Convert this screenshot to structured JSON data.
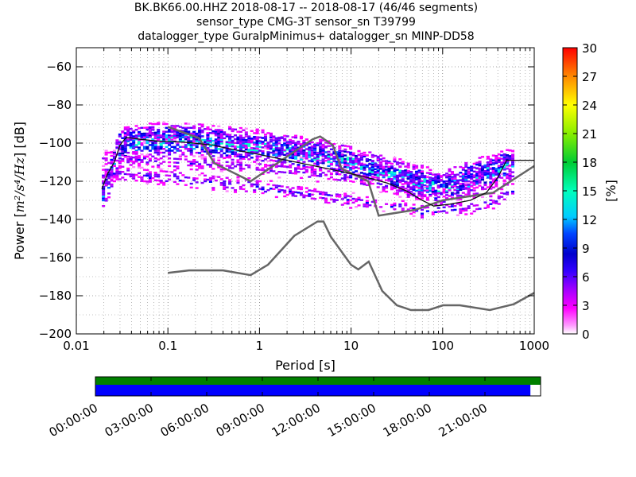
{
  "title_lines": [
    "BK.BK66.00.HHZ   2018-08-17 -- 2018-08-17  (46/46 segments)",
    "sensor_type CMG-3T sensor_sn T39799",
    "datalogger_type GuralpMinimus+ datalogger_sn MINP-DD58"
  ],
  "chart_data": {
    "type": "heatmap",
    "xlabel": "Period [s]",
    "ylabel_parts": {
      "prefix": "Power [",
      "math": "m²/s⁴/Hz",
      "suffix": "] [dB]"
    },
    "x_scale": "log",
    "xlim": [
      0.01,
      1000
    ],
    "ylim": [
      -200,
      -50
    ],
    "x_tick_values": [
      0.01,
      0.1,
      1,
      10,
      100,
      1000
    ],
    "x_tick_labels": [
      "0.01",
      "0.1",
      "1",
      "10",
      "100",
      "1000"
    ],
    "y_tick_values": [
      -200,
      -180,
      -160,
      -140,
      -120,
      -100,
      -80,
      -60
    ],
    "y_tick_labels": [
      "−200",
      "−180",
      "−160",
      "−140",
      "−120",
      "−100",
      "−80",
      "−60"
    ],
    "grid": "dotted",
    "colorbar": {
      "label": "[%]",
      "range": [
        0,
        30
      ],
      "tick_values": [
        0,
        3,
        6,
        9,
        12,
        15,
        18,
        21,
        24,
        27,
        30
      ],
      "tick_labels": [
        "0",
        "3",
        "6",
        "9",
        "12",
        "15",
        "18",
        "21",
        "24",
        "27",
        "30"
      ],
      "colormap": "pqlx"
    },
    "noise_models": [
      {
        "points": [
          [
            0.1,
            -168
          ],
          [
            0.17,
            -166.7
          ],
          [
            0.4,
            -166.7
          ],
          [
            0.8,
            -169.2
          ],
          [
            1.24,
            -163.7
          ],
          [
            2.4,
            -148.6
          ],
          [
            4.3,
            -141.1
          ],
          [
            5.0,
            -141.1
          ],
          [
            6.0,
            -149.0
          ],
          [
            10.0,
            -163.8
          ],
          [
            12.0,
            -166.2
          ],
          [
            15.6,
            -162.1
          ],
          [
            21.9,
            -177.5
          ],
          [
            31.6,
            -185.0
          ],
          [
            45.0,
            -187.5
          ],
          [
            70.0,
            -187.5
          ],
          [
            101.0,
            -185.0
          ],
          [
            154.0,
            -185.0
          ],
          [
            328.0,
            -187.5
          ],
          [
            600.0,
            -184.4
          ],
          [
            1000.0,
            -178.5
          ]
        ]
      },
      {
        "points": [
          [
            0.1,
            -91.5
          ],
          [
            0.22,
            -97.4
          ],
          [
            0.32,
            -110.5
          ],
          [
            0.8,
            -120.0
          ],
          [
            3.8,
            -98.0
          ],
          [
            4.6,
            -96.5
          ],
          [
            6.3,
            -101.0
          ],
          [
            7.9,
            -113.5
          ],
          [
            15.4,
            -120.0
          ],
          [
            20.0,
            -138.0
          ],
          [
            50.0,
            -135.0
          ],
          [
            100.0,
            -130.0
          ],
          [
            354.8,
            -126.0
          ],
          [
            1000.0,
            -112.0
          ]
        ]
      }
    ],
    "mode_curve": {
      "points": [
        [
          0.019,
          -124
        ],
        [
          0.022,
          -116
        ],
        [
          0.026,
          -110
        ],
        [
          0.03,
          -101
        ],
        [
          0.035,
          -97
        ],
        [
          0.05,
          -98
        ],
        [
          0.08,
          -99
        ],
        [
          0.15,
          -99.5
        ],
        [
          0.3,
          -101
        ],
        [
          0.6,
          -104
        ],
        [
          1,
          -106
        ],
        [
          2,
          -109
        ],
        [
          4,
          -112
        ],
        [
          8,
          -115
        ],
        [
          15,
          -118
        ],
        [
          25,
          -121
        ],
        [
          40,
          -125
        ],
        [
          60,
          -130
        ],
        [
          80,
          -133
        ],
        [
          120,
          -132
        ],
        [
          200,
          -130
        ],
        [
          300,
          -126
        ],
        [
          400,
          -118
        ],
        [
          500,
          -109
        ],
        [
          600,
          -109
        ],
        [
          1000,
          -109
        ]
      ]
    },
    "density_bands": [
      {
        "yfn": [
          [
            0.02,
            -126
          ],
          [
            0.03,
            -104
          ],
          [
            0.05,
            -99
          ],
          [
            0.2,
            -99
          ],
          [
            1,
            -102
          ],
          [
            10,
            -110
          ],
          [
            100,
            -124
          ],
          [
            1000,
            -106
          ]
        ],
        "spread": 9,
        "strength": 0.7
      },
      {
        "yfn": [
          [
            0.02,
            -120
          ],
          [
            0.03,
            -96
          ],
          [
            0.1,
            -94
          ],
          [
            1,
            -98
          ],
          [
            10,
            -108
          ],
          [
            60,
            -120
          ],
          [
            200,
            -118
          ],
          [
            1000,
            -100
          ]
        ],
        "spread": 5,
        "strength": 0.45
      },
      {
        "yfn": [
          [
            0.03,
            -116
          ],
          [
            0.1,
            -118
          ],
          [
            1,
            -123
          ],
          [
            10,
            -130
          ],
          [
            60,
            -136
          ],
          [
            300,
            -132
          ],
          [
            1000,
            -120
          ]
        ],
        "spread": 4,
        "strength": 0.4
      },
      {
        "yfn": [
          [
            0.03,
            -108
          ],
          [
            0.1,
            -110
          ],
          [
            1,
            -113
          ],
          [
            10,
            -118
          ],
          [
            60,
            -127
          ],
          [
            300,
            -124
          ],
          [
            1000,
            -112
          ]
        ],
        "spread": 4,
        "strength": 0.35
      }
    ],
    "availability_timeline": {
      "tick_labels": [
        "00:00:00",
        "03:00:00",
        "06:00:00",
        "09:00:00",
        "12:00:00",
        "15:00:00",
        "18:00:00",
        "21:00:00"
      ],
      "tick_hours": [
        0,
        3,
        6,
        9,
        12,
        15,
        18,
        21
      ],
      "range_hours": [
        0,
        24
      ],
      "data_end_hour": 23.45,
      "colors": {
        "coverage": "#008000",
        "data": "#0000ff",
        "gap": "#ffffff"
      }
    }
  }
}
